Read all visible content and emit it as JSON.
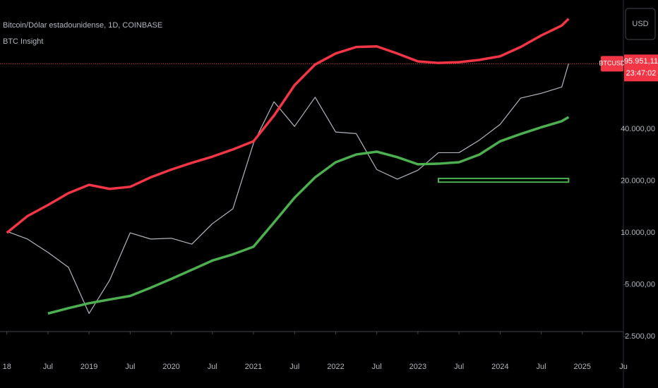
{
  "chart_data": {
    "type": "line",
    "title": "Bitcoin/Dólar estadounidense, 1D, COINBASE",
    "subtitle": "BTC Insight",
    "currency": "USD",
    "symbol": "BTCUSD",
    "last_price_label": "95.951,11",
    "countdown": "23:47:02",
    "log_scale": true,
    "x": [
      "2018-01",
      "2018-04",
      "2018-07",
      "2018-10",
      "2019-01",
      "2019-04",
      "2019-07",
      "2019-10",
      "2020-01",
      "2020-04",
      "2020-07",
      "2020-10",
      "2021-01",
      "2021-04",
      "2021-07",
      "2021-10",
      "2022-01",
      "2022-04",
      "2022-07",
      "2022-10",
      "2023-01",
      "2023-04",
      "2023-07",
      "2023-10",
      "2024-01",
      "2024-04",
      "2024-07",
      "2024-10",
      "2024-11"
    ],
    "series": [
      {
        "color": "#b2b5be",
        "values": [
          10200,
          9200,
          7700,
          6300,
          3400,
          5300,
          10000,
          9200,
          9300,
          8600,
          11300,
          13800,
          33100,
          57700,
          41500,
          61300,
          38500,
          37700,
          23300,
          20500,
          23100,
          29200,
          29200,
          34600,
          42600,
          60600,
          64600,
          70300,
          95951.11
        ]
      },
      {
        "color": "#f23645",
        "values": [
          10000,
          12500,
          14500,
          17000,
          19000,
          18000,
          18500,
          21000,
          23300,
          25500,
          27700,
          30500,
          34000,
          48000,
          72000,
          95000,
          110000,
          120000,
          121000,
          110000,
          99000,
          97000,
          98000,
          101000,
          106000,
          120000,
          140000,
          160000,
          175000
        ]
      },
      {
        "color": "#4caf50",
        "values": [
          null,
          null,
          3400,
          3650,
          3900,
          4100,
          4300,
          4800,
          5400,
          6100,
          6900,
          7500,
          8300,
          11500,
          16000,
          21000,
          25700,
          28500,
          29600,
          27500,
          25000,
          25200,
          25700,
          28500,
          34000,
          37500,
          41000,
          44500,
          47000
        ]
      }
    ],
    "zone": {
      "x": [
        "2023-04",
        "2024-11"
      ],
      "y": [
        19700,
        20700
      ],
      "color": "#4caf50"
    },
    "xlim": [
      "2017-12",
      "2025-07"
    ],
    "xticks": [
      {
        "value": "2018-01",
        "label": "18"
      },
      {
        "value": "2018-07",
        "label": "Jul"
      },
      {
        "value": "2019-01",
        "label": "2019"
      },
      {
        "value": "2019-07",
        "label": "Jul"
      },
      {
        "value": "2020-01",
        "label": "2020"
      },
      {
        "value": "2020-07",
        "label": "Jul"
      },
      {
        "value": "2021-01",
        "label": "2021"
      },
      {
        "value": "2021-07",
        "label": "Jul"
      },
      {
        "value": "2022-01",
        "label": "2022"
      },
      {
        "value": "2022-07",
        "label": "Jul"
      },
      {
        "value": "2023-01",
        "label": "2023"
      },
      {
        "value": "2023-07",
        "label": "Jul"
      },
      {
        "value": "2024-01",
        "label": "2024"
      },
      {
        "value": "2024-07",
        "label": "Jul"
      },
      {
        "value": "2025-01",
        "label": "2025"
      },
      {
        "value": "2025-07",
        "label": "Ju"
      }
    ],
    "ylim": [
      2670,
      225000
    ],
    "yticks": [
      {
        "value": 2500,
        "label": "2.500,00"
      },
      {
        "value": 5000,
        "label": "5.000,00"
      },
      {
        "value": 10000,
        "label": "10.000,00"
      },
      {
        "value": 20000,
        "label": "20.000,00"
      },
      {
        "value": 40000,
        "label": "40.000,00"
      }
    ]
  }
}
